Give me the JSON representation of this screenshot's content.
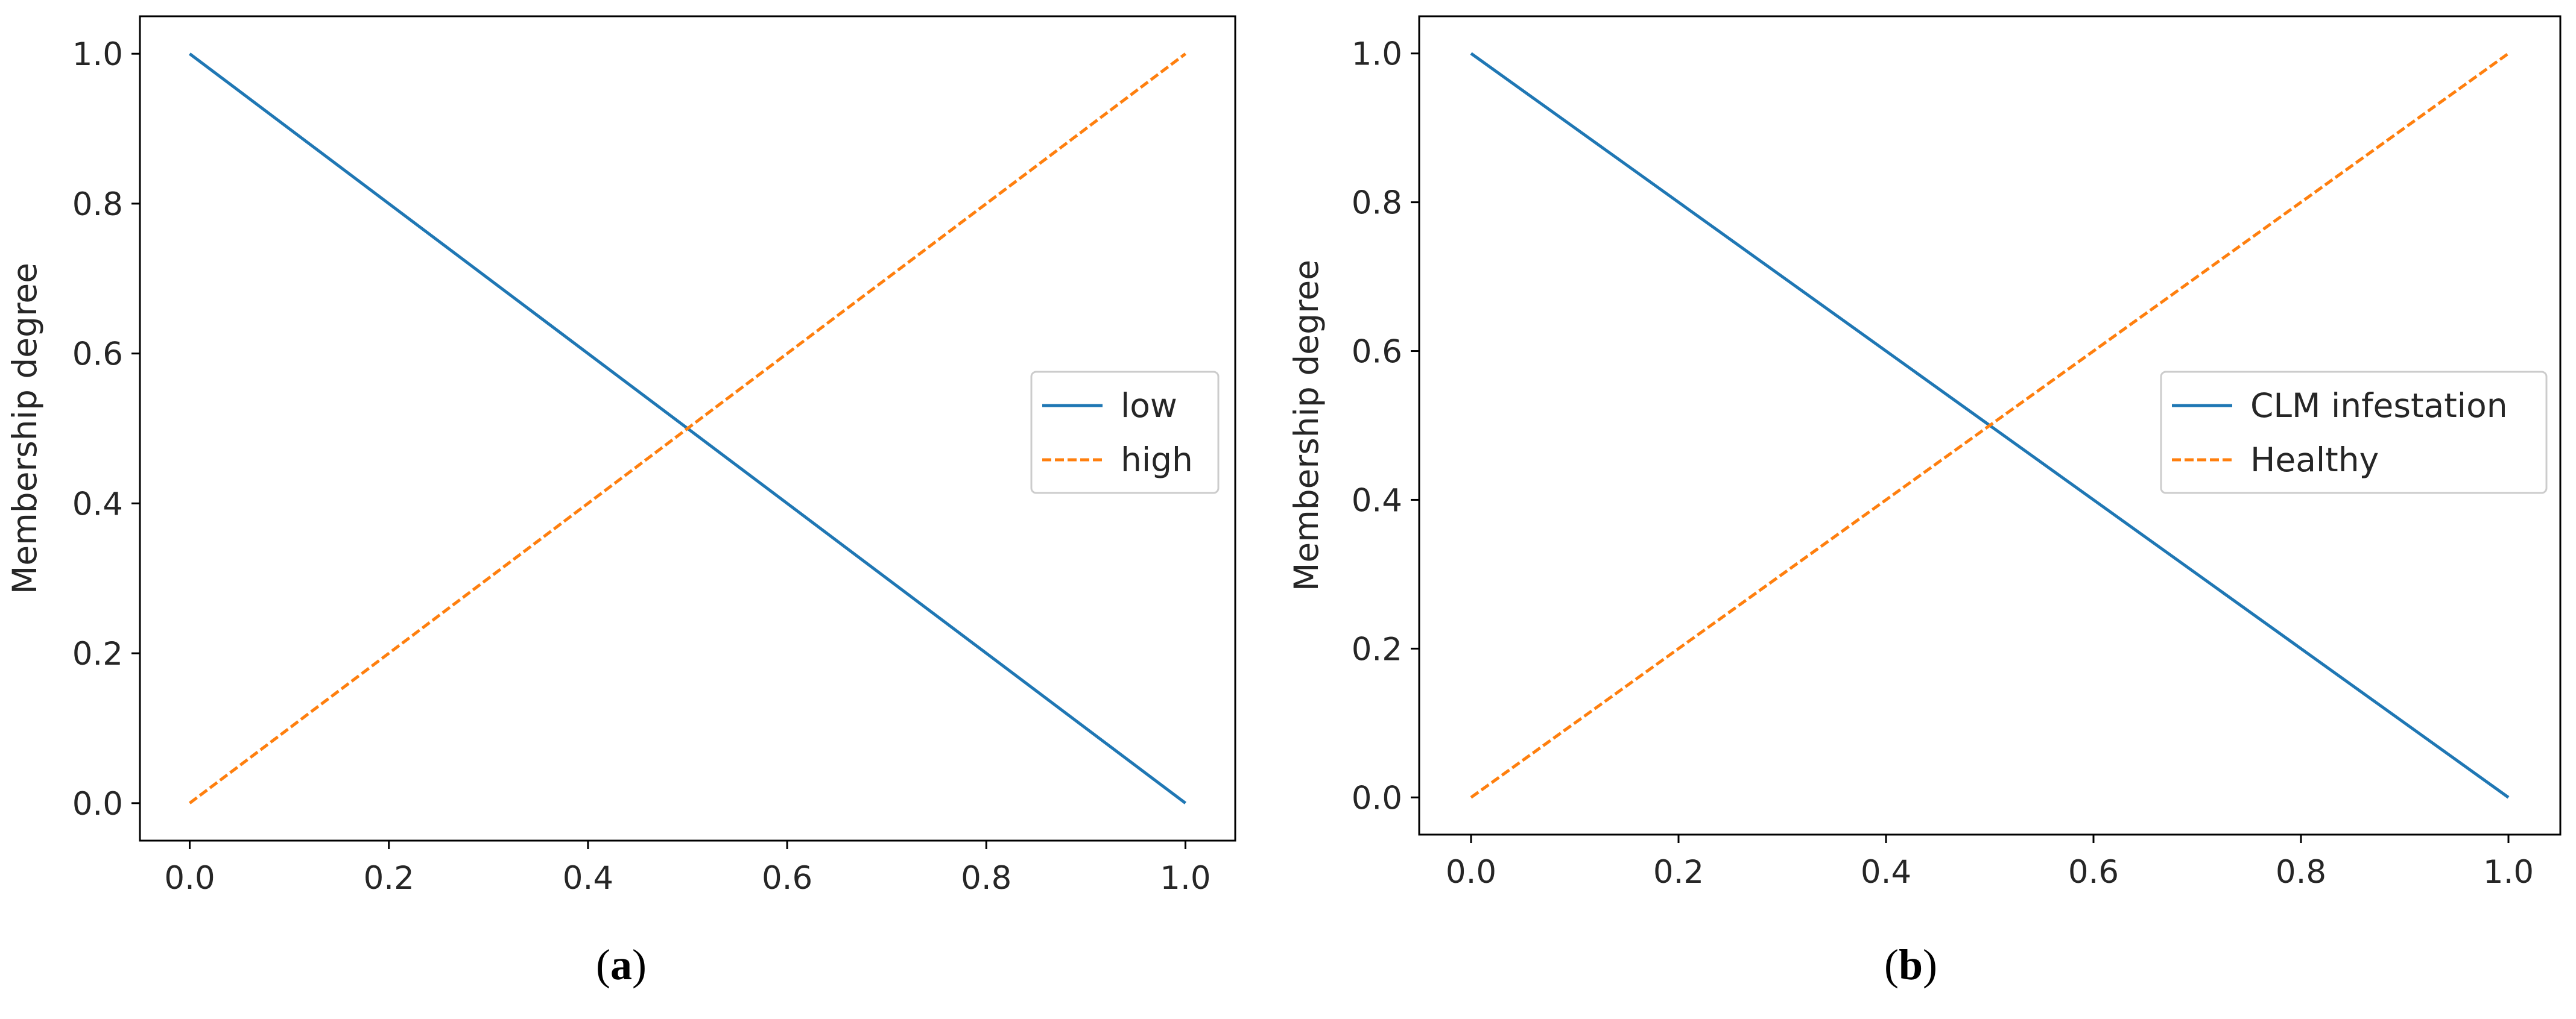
{
  "chart_data": [
    {
      "type": "line",
      "caption_letter": "a",
      "xlabel": "",
      "ylabel": "Membership degree",
      "xlim": [
        -0.05,
        1.05
      ],
      "ylim": [
        -0.05,
        1.05
      ],
      "xticks": [
        "0.0",
        "0.2",
        "0.4",
        "0.6",
        "0.8",
        "1.0"
      ],
      "yticks": [
        "0.0",
        "0.2",
        "0.4",
        "0.6",
        "0.8",
        "1.0"
      ],
      "legend_position": "center-right",
      "series": [
        {
          "name": "low",
          "x": [
            0.0,
            1.0
          ],
          "y": [
            1.0,
            0.0
          ],
          "color": "#1f77b4",
          "style": "solid"
        },
        {
          "name": "high",
          "x": [
            0.0,
            1.0
          ],
          "y": [
            0.0,
            1.0
          ],
          "color": "#ff7f0e",
          "style": "dashed"
        }
      ]
    },
    {
      "type": "line",
      "caption_letter": "b",
      "xlabel": "",
      "ylabel": "Membership degree",
      "xlim": [
        -0.05,
        1.05
      ],
      "ylim": [
        -0.05,
        1.05
      ],
      "xticks": [
        "0.0",
        "0.2",
        "0.4",
        "0.6",
        "0.8",
        "1.0"
      ],
      "yticks": [
        "0.0",
        "0.2",
        "0.4",
        "0.6",
        "0.8",
        "1.0"
      ],
      "legend_position": "center-right",
      "series": [
        {
          "name": "CLM infestation",
          "x": [
            0.0,
            1.0
          ],
          "y": [
            1.0,
            0.0
          ],
          "color": "#1f77b4",
          "style": "solid"
        },
        {
          "name": "Healthy",
          "x": [
            0.0,
            1.0
          ],
          "y": [
            0.0,
            1.0
          ],
          "color": "#ff7f0e",
          "style": "dashed"
        }
      ]
    }
  ]
}
